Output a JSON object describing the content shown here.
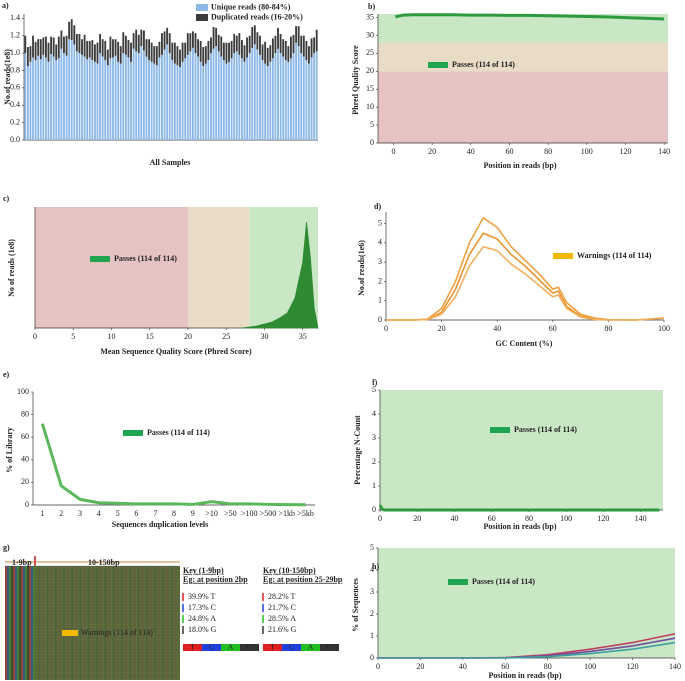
{
  "chart_data": [
    {
      "panel": "a)",
      "type": "bar",
      "stacked": true,
      "xlabel": "All Samples",
      "ylabel": "No.of reads(1e8)",
      "ylim": [
        0,
        1.45
      ],
      "yticks": [
        {
          "value": 0,
          "label": "0.0"
        },
        0.2,
        0.4,
        0.6,
        0.8,
        {
          "value": 1,
          "label": "1.0"
        },
        1.2,
        1.4
      ],
      "series": [
        {
          "name": "Unique reads (80-84%)",
          "color": "#8db8e8",
          "values": [
            1.0,
            0.85,
            0.9,
            0.95,
            0.92,
            0.97,
            0.93,
            0.98,
            0.95,
            0.9,
            0.99,
            0.96,
            0.92,
            0.94,
            1.05,
            1.0,
            0.97,
            1.16,
            1.15,
            1.1,
            1.02,
            1.0,
            0.98,
            0.96,
            0.93,
            0.95,
            0.92,
            0.9,
            0.88,
            1.0,
            0.96,
            0.92,
            0.86,
            0.94,
            0.95,
            0.97,
            0.9,
            0.88,
            1.0,
            0.98,
            0.95,
            0.9,
            1.05,
            1.02,
            1.0,
            1.08,
            1.03,
            0.96,
            0.92,
            0.9,
            0.88,
            0.86,
            0.95,
            0.98,
            1.04,
            1.1,
            1.0,
            0.92,
            0.88,
            0.86,
            0.84,
            0.9,
            0.94,
            0.98,
            1.02,
            1.06,
            1.0,
            0.96,
            0.9,
            0.85,
            0.88,
            0.92,
            1.0,
            1.05,
            1.08,
            1.02,
            0.96,
            0.92,
            0.88,
            0.9,
            0.94,
            1.0,
            1.02,
            0.98,
            0.94,
            0.9,
            0.95,
            1.0,
            1.06,
            1.1,
            1.04,
            0.98,
            0.92,
            0.88,
            0.85,
            0.9,
            0.94,
            1.0,
            1.05,
            1.0,
            0.96,
            0.92,
            0.9,
            0.94,
            1.0,
            1.12,
            1.08,
            1.0,
            0.96,
            0.92,
            0.88,
            0.95,
            1.0,
            1.02
          ]
        },
        {
          "name": "Duplicated reads (16-20%)",
          "color": "#3c3c3c",
          "values": [
            0.2,
            0.22,
            0.18,
            0.25,
            0.21,
            0.19,
            0.23,
            0.2,
            0.24,
            0.22,
            0.2,
            0.22,
            0.18,
            0.25,
            0.21,
            0.19,
            0.23,
            0.2,
            0.24,
            0.22,
            0.2,
            0.22,
            0.18,
            0.25,
            0.21,
            0.19,
            0.23,
            0.2,
            0.24,
            0.22,
            0.2,
            0.22,
            0.18,
            0.25,
            0.21,
            0.19,
            0.23,
            0.2,
            0.24,
            0.22,
            0.2,
            0.22,
            0.18,
            0.25,
            0.21,
            0.19,
            0.23,
            0.2,
            0.24,
            0.22,
            0.2,
            0.22,
            0.18,
            0.25,
            0.21,
            0.19,
            0.23,
            0.2,
            0.24,
            0.22,
            0.2,
            0.22,
            0.18,
            0.25,
            0.21,
            0.19,
            0.23,
            0.2,
            0.24,
            0.22,
            0.2,
            0.22,
            0.18,
            0.25,
            0.21,
            0.19,
            0.23,
            0.2,
            0.24,
            0.22,
            0.2,
            0.22,
            0.18,
            0.25,
            0.21,
            0.19,
            0.23,
            0.2,
            0.24,
            0.22,
            0.2,
            0.22,
            0.18,
            0.25,
            0.21,
            0.19,
            0.23,
            0.2,
            0.24,
            0.22,
            0.2,
            0.22,
            0.18,
            0.25,
            0.21,
            0.19,
            0.23,
            0.2,
            0.24,
            0.22,
            0.2,
            0.22,
            0.18,
            0.25
          ]
        }
      ]
    },
    {
      "panel": "b)",
      "type": "line",
      "xlabel": "Position in reads (bp)",
      "ylabel": "Phred Quality Score",
      "xlim": [
        -8,
        142
      ],
      "xticks": [
        0,
        20,
        40,
        60,
        80,
        100,
        120,
        140
      ],
      "ylim": [
        0,
        36
      ],
      "yticks": [
        0,
        5,
        10,
        15,
        20,
        25,
        30,
        35
      ],
      "zones": [
        {
          "axis": "y",
          "from": 0,
          "to": 20,
          "color": "#e6c3c3"
        },
        {
          "axis": "y",
          "from": 20,
          "to": 28,
          "color": "#e8dcc6"
        },
        {
          "axis": "y",
          "from": 28,
          "to": 36,
          "color": "#c9e7c5"
        }
      ],
      "annotation": {
        "text": "Passes (114 of 114)",
        "color": "#1fa54f"
      },
      "x": [
        1,
        5,
        10,
        20,
        30,
        40,
        50,
        60,
        70,
        80,
        90,
        100,
        110,
        120,
        130,
        140
      ],
      "series": [
        {
          "color": "#2e9a3e",
          "values": [
            35.2,
            35.7,
            35.8,
            35.8,
            35.8,
            35.7,
            35.7,
            35.6,
            35.6,
            35.5,
            35.4,
            35.3,
            35.2,
            35.0,
            34.8,
            34.6
          ]
        }
      ]
    },
    {
      "panel": "c)",
      "type": "area",
      "xlabel": "Mean Sequence Quality Score (Phred Score)",
      "ylabel": "No of reads (1e8)",
      "xlim": [
        0,
        37
      ],
      "xticks": [
        0,
        5,
        10,
        15,
        20,
        25,
        30,
        35
      ],
      "ylim": [
        0,
        1.2
      ],
      "zones": [
        {
          "axis": "x",
          "from": 0,
          "to": 20,
          "color": "#e6c3c3"
        },
        {
          "axis": "x",
          "from": 20,
          "to": 28,
          "color": "#e8dcc6"
        },
        {
          "axis": "x",
          "from": 28,
          "to": 37,
          "color": "#c9e7c5"
        }
      ],
      "annotation": {
        "text": "Passes (114 of 114)",
        "color": "#1fa54f"
      },
      "x": [
        27,
        28,
        29,
        30,
        31,
        32,
        33,
        34,
        35,
        35.5,
        36,
        36.5,
        37
      ],
      "series": [
        {
          "color": "#2e8b34",
          "values": [
            0,
            0.01,
            0.02,
            0.04,
            0.06,
            0.1,
            0.15,
            0.3,
            0.65,
            1.05,
            0.7,
            0.2,
            0
          ]
        }
      ]
    },
    {
      "panel": "d)",
      "type": "line",
      "xlabel": "GC Content (%)",
      "ylabel": "No.of reads(1e6)",
      "xlim": [
        0,
        100
      ],
      "xticks": [
        0,
        20,
        40,
        60,
        80,
        100
      ],
      "ylim": [
        0,
        5.6
      ],
      "yticks": [
        0,
        1,
        2,
        3,
        4,
        5
      ],
      "annotation": {
        "text": "Warnings (114 of 114)",
        "color": "#f5b800"
      },
      "x": [
        0,
        10,
        15,
        20,
        25,
        30,
        35,
        40,
        45,
        50,
        55,
        60,
        62,
        65,
        70,
        75,
        80,
        90,
        100
      ],
      "series": [
        {
          "color": "#f0a040",
          "values": [
            0,
            0,
            0.05,
            0.6,
            2.0,
            4.0,
            5.3,
            4.8,
            3.8,
            3.1,
            2.4,
            1.6,
            1.7,
            0.9,
            0.3,
            0.1,
            0.02,
            0,
            0.1
          ]
        },
        {
          "color": "#e8952e",
          "values": [
            0,
            0,
            0.03,
            0.4,
            1.6,
            3.4,
            4.5,
            4.2,
            3.4,
            2.8,
            2.1,
            1.4,
            1.5,
            0.7,
            0.2,
            0.05,
            0.01,
            0,
            0.1
          ]
        },
        {
          "color": "#f2b060",
          "values": [
            0,
            0,
            0.02,
            0.3,
            1.2,
            2.8,
            3.8,
            3.6,
            2.9,
            2.4,
            1.8,
            1.2,
            1.3,
            0.6,
            0.15,
            0.03,
            0,
            0,
            0.1
          ]
        }
      ]
    },
    {
      "panel": "e)",
      "type": "line",
      "xlabel": "Sequences duplication levels",
      "ylabel": "% of Library",
      "categories": [
        "1",
        "2",
        "3",
        "4",
        "5",
        "6",
        "7",
        "8",
        "9",
        ">10",
        ">50",
        ">100",
        ">500",
        ">1kb",
        ">5kb"
      ],
      "ylim": [
        0,
        100
      ],
      "yticks": [
        0,
        20,
        40,
        60,
        80,
        100
      ],
      "annotation": {
        "text": "Passes (114 of 114)",
        "color": "#1fa54f"
      },
      "series": [
        {
          "color": "#5cb85c",
          "values": [
            72,
            17,
            5,
            2,
            1.5,
            1,
            1,
            1,
            0.5,
            3,
            1,
            1,
            0.5,
            0.3,
            0.2
          ]
        }
      ]
    },
    {
      "panel": "f)",
      "type": "line",
      "xlabel": "Position in reads (bp)",
      "ylabel": "Percentage N-Count",
      "xlim": [
        0,
        152
      ],
      "xticks": [
        0,
        20,
        40,
        60,
        80,
        100,
        120,
        140
      ],
      "ylim": [
        0,
        5
      ],
      "yticks": [
        0,
        1,
        2,
        3,
        4,
        5
      ],
      "zones": [
        {
          "axis": "y",
          "from": 0,
          "to": 5,
          "color": "#c9e7c5"
        }
      ],
      "annotation": {
        "text": "Passes (114 of 114)",
        "color": "#1fa54f"
      },
      "x": [
        0,
        1,
        2,
        5,
        10,
        150
      ],
      "series": [
        {
          "color": "#2e9a3e",
          "values": [
            0.2,
            0.05,
            0,
            0,
            0,
            0
          ]
        }
      ]
    },
    {
      "panel": "g)",
      "type": "heatmap",
      "ranges": [
        "1-9bp",
        "10-150bp"
      ],
      "annotation": {
        "text": "Warnings (114 of 114)",
        "color": "#f5b800",
        "text_color": "#e02020"
      },
      "keys": [
        {
          "title": "Key (1-9bp)",
          "example": "Eg: at position 2bp",
          "items": [
            "39.9% T",
            "17.3% C",
            "24.8% A",
            "18.0% G"
          ]
        },
        {
          "title": "Key (10-150bp)",
          "example": "Eg: at position 25-29bp",
          "items": [
            "28.2% T",
            "21.7% C",
            "28.5% A",
            "21.6% G"
          ]
        }
      ],
      "bases": [
        {
          "name": "T",
          "color": "#e02020"
        },
        {
          "name": "C",
          "color": "#2040e0"
        },
        {
          "name": "A",
          "color": "#20c020"
        },
        {
          "name": "G",
          "color": "#333333"
        }
      ]
    },
    {
      "panel": "h)",
      "type": "line",
      "xlabel": "Position in reads (bp)",
      "ylabel": "% of Sequences",
      "xlim": [
        0,
        140
      ],
      "xticks": [
        0,
        20,
        40,
        60,
        80,
        100,
        120,
        140
      ],
      "ylim": [
        0,
        5
      ],
      "yticks": [
        0,
        1,
        2,
        3,
        4,
        5
      ],
      "zones": [
        {
          "axis": "y",
          "from": 0,
          "to": 5,
          "color": "#c9e7c5"
        }
      ],
      "annotation": {
        "text": "Passes (114 of 114)",
        "color": "#1fa54f"
      },
      "x": [
        0,
        20,
        40,
        60,
        80,
        100,
        120,
        140
      ],
      "series": [
        {
          "color": "#c04060",
          "values": [
            0,
            0,
            0,
            0.02,
            0.15,
            0.4,
            0.7,
            1.1
          ]
        },
        {
          "color": "#7050a0",
          "values": [
            0,
            0,
            0,
            0.01,
            0.1,
            0.3,
            0.55,
            0.9
          ]
        },
        {
          "color": "#40a0a0",
          "values": [
            0,
            0,
            0,
            0,
            0.06,
            0.2,
            0.4,
            0.7
          ]
        }
      ]
    }
  ]
}
